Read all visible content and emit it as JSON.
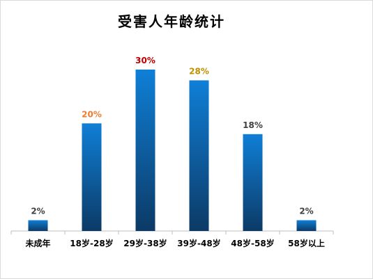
{
  "chart_data": {
    "type": "bar",
    "title": "受害人年龄统计",
    "categories": [
      "未成年",
      "18岁-28岁",
      "29岁-38岁",
      "39岁-48岁",
      "48岁-58岁",
      "58岁以上"
    ],
    "values": [
      2,
      20,
      30,
      28,
      18,
      2
    ],
    "value_labels": [
      "2%",
      "20%",
      "30%",
      "28%",
      "18%",
      "2%"
    ],
    "value_label_colors": [
      "#404040",
      "#ed7d31",
      "#c00000",
      "#bf9000",
      "#404040",
      "#404040"
    ],
    "ylim": [
      0,
      30
    ],
    "grid": false,
    "legend": "none",
    "bar_gradient": [
      "#0f7fd6",
      "#0c3a66"
    ],
    "xlabel": "",
    "ylabel": ""
  }
}
